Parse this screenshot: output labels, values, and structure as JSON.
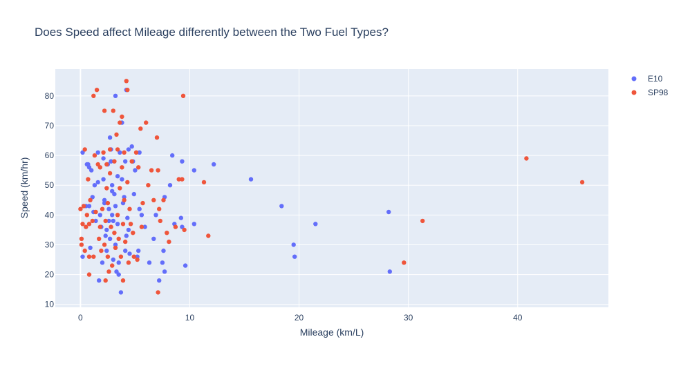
{
  "chart_data": {
    "type": "scatter",
    "title": "Does Speed affect Mileage differently between the Two Fuel Types?",
    "xlabel": "Mileage (km/L)",
    "ylabel": "Speed (km/hr)",
    "xlim": [
      -2.3,
      48.3
    ],
    "ylim": [
      9,
      89
    ],
    "xticks": [
      0,
      10,
      20,
      30,
      40
    ],
    "yticks": [
      10,
      20,
      30,
      40,
      50,
      60,
      70,
      80
    ],
    "grid": true,
    "legend": "top-right",
    "plot_background": "#e5ecf6",
    "series": [
      {
        "name": "E10",
        "color": "#636efa",
        "points": [
          [
            0.2,
            61
          ],
          [
            0.2,
            26
          ],
          [
            0.3,
            43
          ],
          [
            0.5,
            43
          ],
          [
            0.6,
            57
          ],
          [
            0.7,
            57
          ],
          [
            0.8,
            56
          ],
          [
            0.8,
            43
          ],
          [
            0.9,
            29
          ],
          [
            1.0,
            55
          ],
          [
            1.1,
            46
          ],
          [
            1.2,
            41
          ],
          [
            1.3,
            50
          ],
          [
            1.4,
            38
          ],
          [
            1.6,
            61
          ],
          [
            1.6,
            51
          ],
          [
            1.7,
            18
          ],
          [
            1.8,
            40
          ],
          [
            1.9,
            36
          ],
          [
            2.0,
            24
          ],
          [
            2.1,
            59
          ],
          [
            2.1,
            52
          ],
          [
            2.2,
            45
          ],
          [
            2.2,
            44
          ],
          [
            2.3,
            33
          ],
          [
            2.4,
            35
          ],
          [
            2.4,
            28
          ],
          [
            2.5,
            57
          ],
          [
            2.6,
            42
          ],
          [
            2.6,
            38
          ],
          [
            2.7,
            66
          ],
          [
            2.7,
            32
          ],
          [
            2.8,
            62
          ],
          [
            2.8,
            58
          ],
          [
            2.9,
            50
          ],
          [
            2.9,
            48
          ],
          [
            2.9,
            40
          ],
          [
            3.0,
            38
          ],
          [
            3.0,
            25
          ],
          [
            3.1,
            47
          ],
          [
            3.2,
            80
          ],
          [
            3.2,
            43
          ],
          [
            3.2,
            30
          ],
          [
            3.3,
            21
          ],
          [
            3.4,
            53
          ],
          [
            3.4,
            37
          ],
          [
            3.5,
            24
          ],
          [
            3.5,
            20
          ],
          [
            3.6,
            61
          ],
          [
            3.7,
            14
          ],
          [
            3.8,
            71
          ],
          [
            3.8,
            52
          ],
          [
            3.9,
            44
          ],
          [
            4.0,
            46
          ],
          [
            4.1,
            58
          ],
          [
            4.1,
            28
          ],
          [
            4.2,
            82
          ],
          [
            4.2,
            33
          ],
          [
            4.3,
            39
          ],
          [
            4.4,
            62
          ],
          [
            4.4,
            35
          ],
          [
            4.5,
            27
          ],
          [
            4.7,
            63
          ],
          [
            4.8,
            58
          ],
          [
            4.9,
            47
          ],
          [
            5.0,
            55
          ],
          [
            5.2,
            26
          ],
          [
            5.3,
            28
          ],
          [
            5.4,
            61
          ],
          [
            5.4,
            42
          ],
          [
            5.6,
            40
          ],
          [
            5.9,
            36
          ],
          [
            6.3,
            24
          ],
          [
            6.7,
            32
          ],
          [
            6.9,
            40
          ],
          [
            7.2,
            18
          ],
          [
            7.5,
            24
          ],
          [
            7.6,
            28
          ],
          [
            7.7,
            21
          ],
          [
            7.7,
            46
          ],
          [
            8.2,
            50
          ],
          [
            8.4,
            60
          ],
          [
            8.6,
            37
          ],
          [
            9.2,
            39
          ],
          [
            9.3,
            58
          ],
          [
            9.3,
            36
          ],
          [
            9.6,
            23
          ],
          [
            10.4,
            55
          ],
          [
            10.4,
            37
          ],
          [
            12.2,
            57
          ],
          [
            15.6,
            52
          ],
          [
            18.4,
            43
          ],
          [
            19.5,
            30
          ],
          [
            19.6,
            26
          ],
          [
            21.5,
            37
          ],
          [
            28.2,
            41
          ],
          [
            28.3,
            21
          ]
        ]
      },
      {
        "name": "SP98",
        "color": "#ef553b",
        "points": [
          [
            0.0,
            42
          ],
          [
            0.1,
            32
          ],
          [
            0.1,
            30
          ],
          [
            0.2,
            37
          ],
          [
            0.3,
            43
          ],
          [
            0.4,
            62
          ],
          [
            0.4,
            28
          ],
          [
            0.5,
            36
          ],
          [
            0.6,
            40
          ],
          [
            0.7,
            52
          ],
          [
            0.8,
            37
          ],
          [
            0.8,
            26
          ],
          [
            0.8,
            20
          ],
          [
            0.9,
            45
          ],
          [
            1.1,
            38
          ],
          [
            1.2,
            80
          ],
          [
            1.2,
            26
          ],
          [
            1.3,
            60
          ],
          [
            1.4,
            41
          ],
          [
            1.5,
            82
          ],
          [
            1.6,
            57
          ],
          [
            1.7,
            32
          ],
          [
            1.8,
            56
          ],
          [
            1.8,
            36
          ],
          [
            1.9,
            28
          ],
          [
            2.0,
            42
          ],
          [
            2.1,
            61
          ],
          [
            2.2,
            75
          ],
          [
            2.2,
            30
          ],
          [
            2.3,
            38
          ],
          [
            2.3,
            18
          ],
          [
            2.4,
            57
          ],
          [
            2.4,
            49
          ],
          [
            2.5,
            44
          ],
          [
            2.5,
            26
          ],
          [
            2.6,
            21
          ],
          [
            2.7,
            62
          ],
          [
            2.7,
            54
          ],
          [
            2.8,
            36
          ],
          [
            2.9,
            23
          ],
          [
            3.0,
            75
          ],
          [
            3.1,
            58
          ],
          [
            3.1,
            34
          ],
          [
            3.2,
            29
          ],
          [
            3.3,
            67
          ],
          [
            3.4,
            62
          ],
          [
            3.4,
            40
          ],
          [
            3.5,
            32
          ],
          [
            3.6,
            71
          ],
          [
            3.6,
            49
          ],
          [
            3.7,
            26
          ],
          [
            3.8,
            73
          ],
          [
            3.8,
            56
          ],
          [
            3.9,
            37
          ],
          [
            3.9,
            18
          ],
          [
            4.0,
            61
          ],
          [
            4.0,
            45
          ],
          [
            4.1,
            31
          ],
          [
            4.2,
            85
          ],
          [
            4.3,
            82
          ],
          [
            4.3,
            51
          ],
          [
            4.4,
            24
          ],
          [
            4.5,
            42
          ],
          [
            4.6,
            37
          ],
          [
            4.7,
            58
          ],
          [
            4.8,
            34
          ],
          [
            4.9,
            26
          ],
          [
            5.1,
            61
          ],
          [
            5.2,
            25
          ],
          [
            5.3,
            56
          ],
          [
            5.5,
            69
          ],
          [
            5.6,
            36
          ],
          [
            5.7,
            44
          ],
          [
            6.0,
            71
          ],
          [
            6.2,
            50
          ],
          [
            6.5,
            55
          ],
          [
            6.7,
            45
          ],
          [
            7.0,
            66
          ],
          [
            7.1,
            14
          ],
          [
            7.1,
            55
          ],
          [
            7.2,
            42
          ],
          [
            7.3,
            38
          ],
          [
            7.6,
            45
          ],
          [
            7.9,
            34
          ],
          [
            8.1,
            31
          ],
          [
            8.7,
            36
          ],
          [
            9.0,
            52
          ],
          [
            9.3,
            52
          ],
          [
            9.4,
            80
          ],
          [
            9.5,
            35
          ],
          [
            11.3,
            51
          ],
          [
            11.7,
            33
          ],
          [
            29.6,
            24
          ],
          [
            31.3,
            38
          ],
          [
            40.8,
            59
          ],
          [
            45.9,
            51
          ]
        ]
      }
    ]
  }
}
